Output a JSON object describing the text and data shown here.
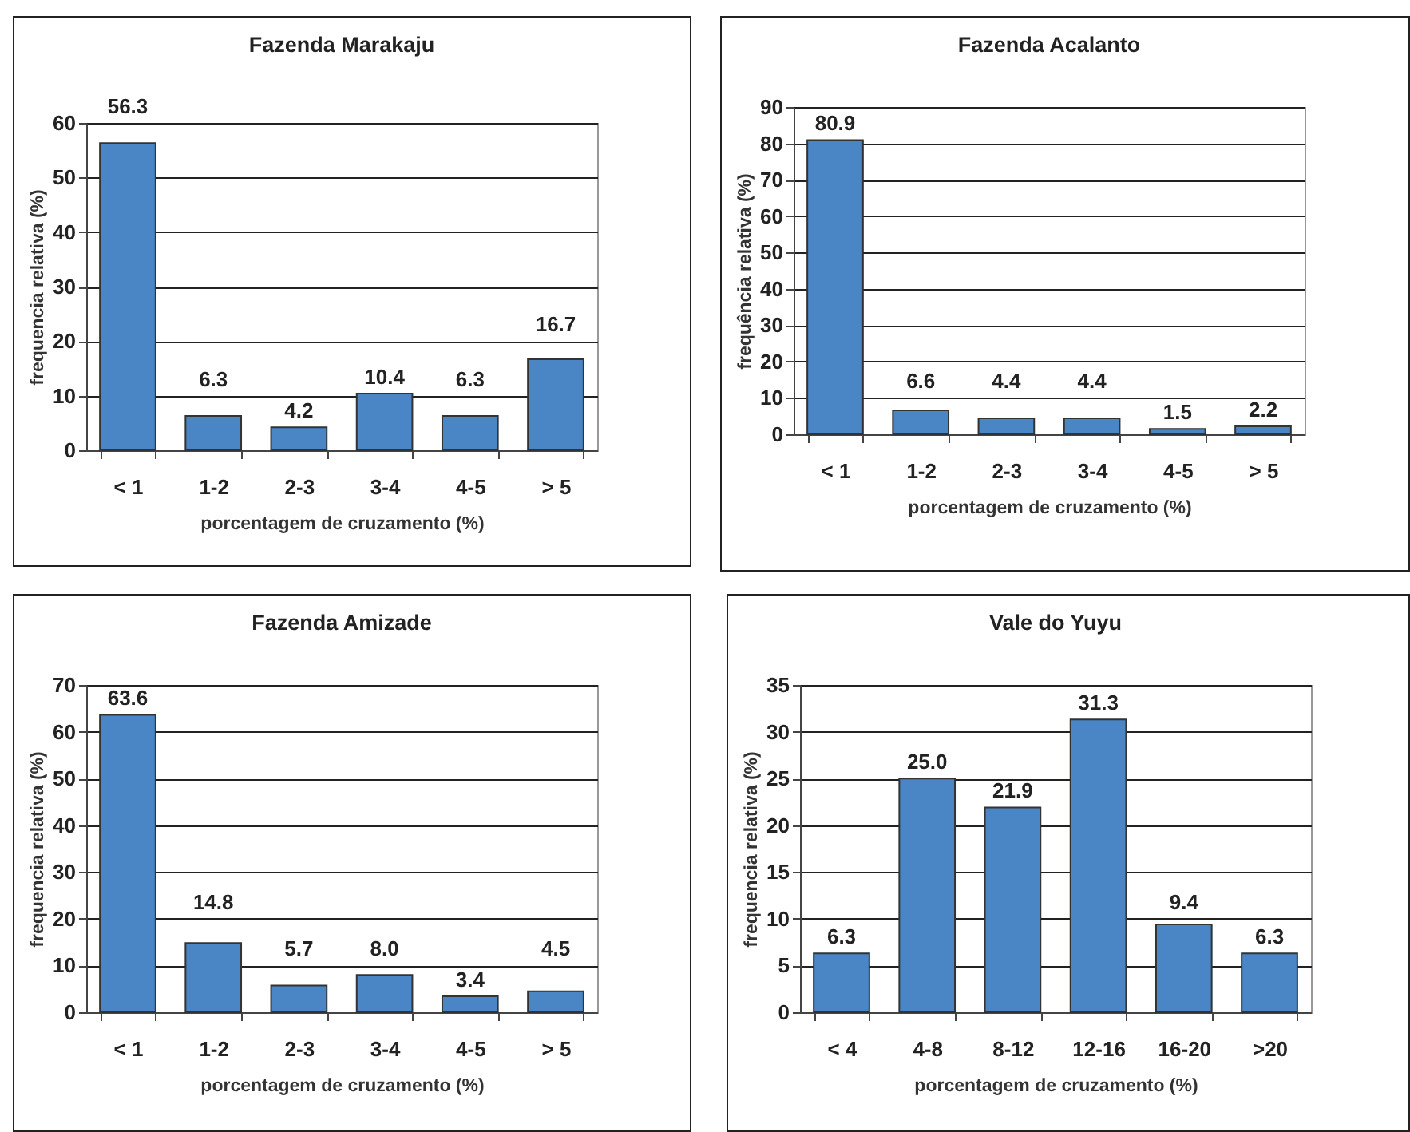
{
  "chart_data": [
    {
      "type": "bar",
      "title": "Fazenda Marakaju",
      "xlabel": "porcentagem de cruzamento (%)",
      "ylabel": "frequencia relativa (%)",
      "categories": [
        "< 1",
        "1-2",
        "2-3",
        "3-4",
        "4-5",
        "> 5"
      ],
      "values": [
        56.3,
        6.3,
        4.2,
        10.4,
        6.3,
        16.7
      ],
      "value_labels": [
        "56.3",
        "6.3",
        "4.2",
        "10.4",
        "6.3",
        "16.7"
      ],
      "color": "#4a86c6",
      "ylim": [
        0,
        60
      ],
      "yticks": [
        0,
        10,
        20,
        30,
        40,
        50,
        60
      ],
      "grid": "y"
    },
    {
      "type": "bar",
      "title": "Fazenda Acalanto",
      "xlabel": "porcentagem de cruzamento  (%)",
      "ylabel": "frequência relativa (%)",
      "categories": [
        "< 1",
        "1-2",
        "2-3",
        "3-4",
        "4-5",
        "> 5"
      ],
      "values": [
        80.9,
        6.6,
        4.4,
        4.4,
        1.5,
        2.2
      ],
      "value_labels": [
        "80.9",
        "6.6",
        "4.4",
        "4.4",
        "1.5",
        "2.2"
      ],
      "color": "#4a86c6",
      "ylim": [
        0,
        90
      ],
      "yticks": [
        0,
        10,
        20,
        30,
        40,
        50,
        60,
        70,
        80,
        90
      ],
      "grid": "y"
    },
    {
      "type": "bar",
      "title": "Fazenda Amizade",
      "xlabel": "porcentagem de cruzamento (%)",
      "ylabel": "frequencia relativa (%)",
      "categories": [
        "< 1",
        "1-2",
        "2-3",
        "3-4",
        "4-5",
        "> 5"
      ],
      "values": [
        63.6,
        14.8,
        5.7,
        8.0,
        3.4,
        4.5
      ],
      "value_labels": [
        "63.6",
        "14.8",
        "5.7",
        "8.0",
        "3.4",
        "4.5"
      ],
      "color": "#4a86c6",
      "ylim": [
        0,
        70
      ],
      "yticks": [
        0,
        10,
        20,
        30,
        40,
        50,
        60,
        70
      ],
      "grid": "y"
    },
    {
      "type": "bar",
      "title": "Vale do Yuyu",
      "xlabel": "porcentagem de cruzamento (%)",
      "ylabel": "frequencia relativa (%)",
      "categories": [
        "< 4",
        "4-8",
        "8-12",
        "12-16",
        "16-20",
        ">20"
      ],
      "values": [
        6.3,
        25.0,
        21.9,
        31.3,
        9.4,
        6.3
      ],
      "value_labels": [
        "6.3",
        "25.0",
        "21.9",
        "31.3",
        "9.4",
        "6.3"
      ],
      "color": "#4a86c6",
      "ylim": [
        0,
        35
      ],
      "yticks": [
        0,
        5,
        10,
        15,
        20,
        25,
        30,
        35
      ],
      "grid": "y"
    }
  ]
}
